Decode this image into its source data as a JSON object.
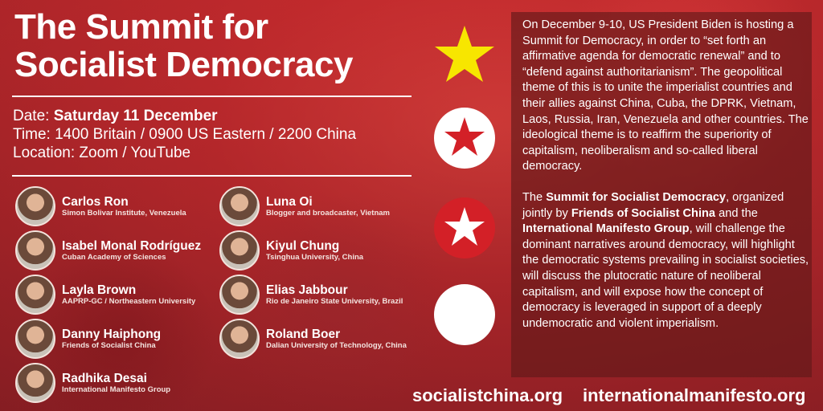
{
  "title": {
    "line1": "The Summit for",
    "line2": "Socialist Democracy"
  },
  "event": {
    "date_label": "Date: ",
    "date_value": "Saturday 11 December",
    "time": "Time: 1400 Britain / 0900 US Eastern / 2200 China",
    "location": "Location: Zoom / YouTube"
  },
  "speakers": [
    {
      "name": "Carlos Ron",
      "affiliation": "Simon Bolivar Institute, Venezuela"
    },
    {
      "name": "Isabel Monal Rodríguez",
      "affiliation": "Cuban Academy of Sciences"
    },
    {
      "name": "Layla Brown",
      "affiliation": "AAPRP-GC / Northeastern University"
    },
    {
      "name": "Danny Haiphong",
      "affiliation": "Friends of Socialist China"
    },
    {
      "name": "Radhika Desai",
      "affiliation": "International Manifesto Group"
    },
    {
      "name": "Luna Oi",
      "affiliation": "Blogger and broadcaster, Vietnam"
    },
    {
      "name": "Kiyul Chung",
      "affiliation": "Tsinghua University, China"
    },
    {
      "name": "Elias Jabbour",
      "affiliation": "Rio de Janeiro State University, Brazil"
    },
    {
      "name": "Roland Boer",
      "affiliation": "Dalian University of Technology, China"
    }
  ],
  "description": {
    "p1": "On December 9-10, US President Biden is hosting a Summit for Democracy, in order to “set forth an affirmative agenda for democratic renewal” and to “defend against authoritarianism”.  The geopolitical theme of this is to unite the imperialist countries and their allies against China, Cuba, the DPRK, Vietnam, Laos, Russia, Iran, Venezuela and other countries. The ideological theme is to reaffirm the superiority of capitalism, neoliberalism and so-called liberal democracy.",
    "p2": {
      "a": "The ",
      "b": "Summit for Socialist Democracy",
      "c": ", organized jointly by ",
      "d": "Friends of Socialist China",
      "e": " and the ",
      "f": "International Manifesto Group",
      "g": ", will challenge the dominant narratives around democracy, will highlight the democratic systems prevailing in socialist societies, will discuss the plutocratic nature of neoliberal capitalism, and will expose how the concept of democracy is leveraged in support of a deeply undemocratic and violent imperialism."
    }
  },
  "symbols": [
    "yellow-star-icon",
    "red-star-in-white-circle-icon",
    "white-star-in-red-circle-icon",
    "white-circle-icon"
  ],
  "colors": {
    "yellow": "#f7e600",
    "red": "#d32027",
    "white": "#ffffff"
  },
  "footer": {
    "site1": "socialistchina.org",
    "site2": "internationalmanifesto.org"
  }
}
